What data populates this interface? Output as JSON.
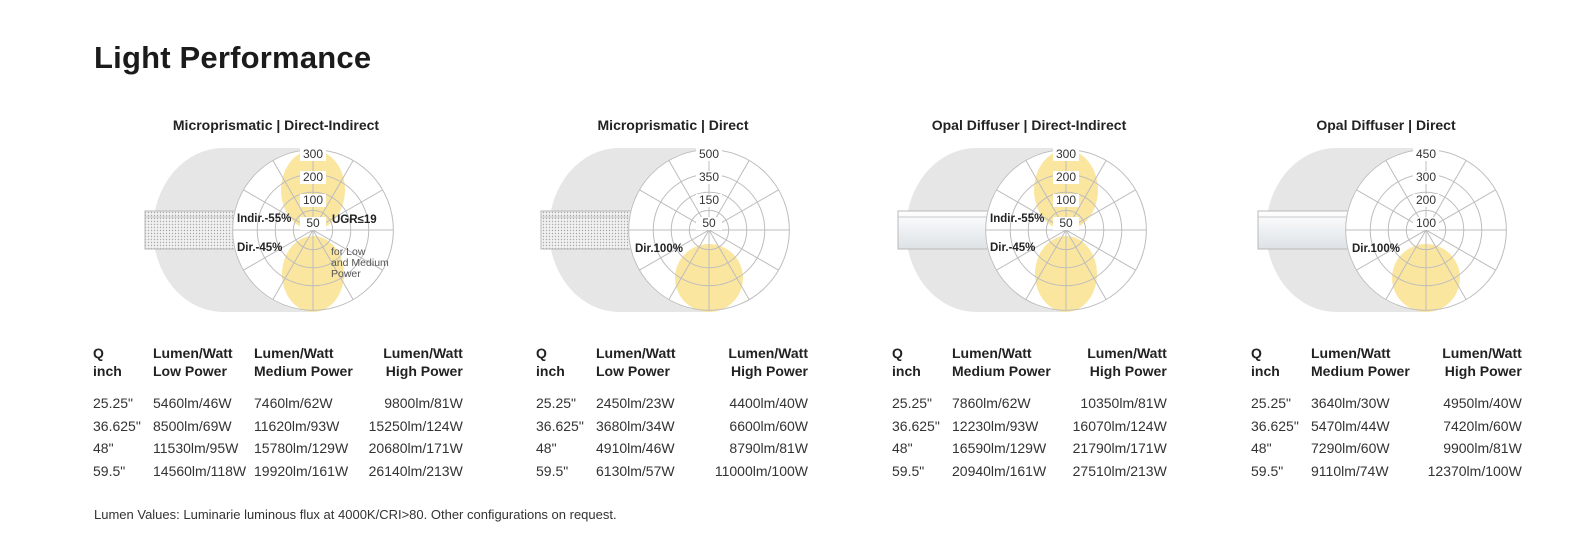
{
  "page_title": "Light Performance",
  "footnote": "Lumen Values: Luminarie luminous flux at 4000K/CRI>80. Other configurations on request.",
  "colors": {
    "lobe": "#fbe6a0",
    "housing": "#e6e6e6",
    "grid": "#bdbdbd",
    "text": "#222222"
  },
  "panels": [
    {
      "title": "Microprismatic | Direct-Indirect",
      "diffuser": "microprismatic",
      "distribution": "direct-indirect",
      "ring_labels": [
        "300",
        "200",
        "100",
        "50"
      ],
      "annotations": {
        "indirect": "Indir.-55%",
        "direct": "Dir.-45%",
        "ugr": "UGR≤19",
        "note_lines": [
          "for Low",
          "and Medium",
          "Power"
        ]
      },
      "headers": [
        [
          "Q",
          "inch"
        ],
        [
          "Lumen/Watt",
          "Low Power"
        ],
        [
          "Lumen/Watt",
          "Medium Power"
        ],
        [
          "Lumen/Watt",
          "High Power"
        ]
      ],
      "rows": [
        [
          "25.25\"",
          "5460lm/46W",
          "7460lm/62W",
          "9800lm/81W"
        ],
        [
          "36.625\"",
          "8500lm/69W",
          "11620lm/93W",
          "15250lm/124W"
        ],
        [
          "48\"",
          "11530lm/95W",
          "15780lm/129W",
          "20680lm/171W"
        ],
        [
          "59.5\"",
          "14560lm/118W",
          "19920lm/161W",
          "26140lm/213W"
        ]
      ]
    },
    {
      "title": "Microprismatic | Direct",
      "diffuser": "microprismatic",
      "distribution": "direct",
      "ring_labels": [
        "500",
        "350",
        "150",
        "50"
      ],
      "annotations": {
        "direct": "Dir.100%"
      },
      "headers": [
        [
          "Q",
          "inch"
        ],
        [
          "Lumen/Watt",
          "Low Power"
        ],
        [
          "Lumen/Watt",
          "High Power"
        ]
      ],
      "rows": [
        [
          "25.25\"",
          "2450lm/23W",
          "4400lm/40W"
        ],
        [
          "36.625\"",
          "3680lm/34W",
          "6600lm/60W"
        ],
        [
          "48\"",
          "4910lm/46W",
          "8790lm/81W"
        ],
        [
          "59.5\"",
          "6130lm/57W",
          "11000lm/100W"
        ]
      ]
    },
    {
      "title": "Opal Diffuser | Direct-Indirect",
      "diffuser": "opal",
      "distribution": "direct-indirect",
      "ring_labels": [
        "300",
        "200",
        "100",
        "50"
      ],
      "annotations": {
        "indirect": "Indir.-55%",
        "direct": "Dir.-45%"
      },
      "headers": [
        [
          "Q",
          "inch"
        ],
        [
          "Lumen/Watt",
          "Medium Power"
        ],
        [
          "Lumen/Watt",
          "High Power"
        ]
      ],
      "rows": [
        [
          "25.25\"",
          "7860lm/62W",
          "10350lm/81W"
        ],
        [
          "36.625\"",
          "12230lm/93W",
          "16070lm/124W"
        ],
        [
          "48\"",
          "16590lm/129W",
          "21790lm/171W"
        ],
        [
          "59.5\"",
          "20940lm/161W",
          "27510lm/213W"
        ]
      ]
    },
    {
      "title": "Opal Diffuser | Direct",
      "diffuser": "opal",
      "distribution": "direct",
      "ring_labels": [
        "450",
        "300",
        "200",
        "100"
      ],
      "annotations": {
        "direct": "Dir.100%"
      },
      "headers": [
        [
          "Q",
          "inch"
        ],
        [
          "Lumen/Watt",
          "Medium Power"
        ],
        [
          "Lumen/Watt",
          "High Power"
        ]
      ],
      "rows": [
        [
          "25.25\"",
          "3640lm/30W",
          "4950lm/40W"
        ],
        [
          "36.625\"",
          "5470lm/44W",
          "7420lm/60W"
        ],
        [
          "48\"",
          "7290lm/60W",
          "9900lm/81W"
        ],
        [
          "59.5\"",
          "9110lm/74W",
          "12370lm/100W"
        ]
      ]
    }
  ]
}
